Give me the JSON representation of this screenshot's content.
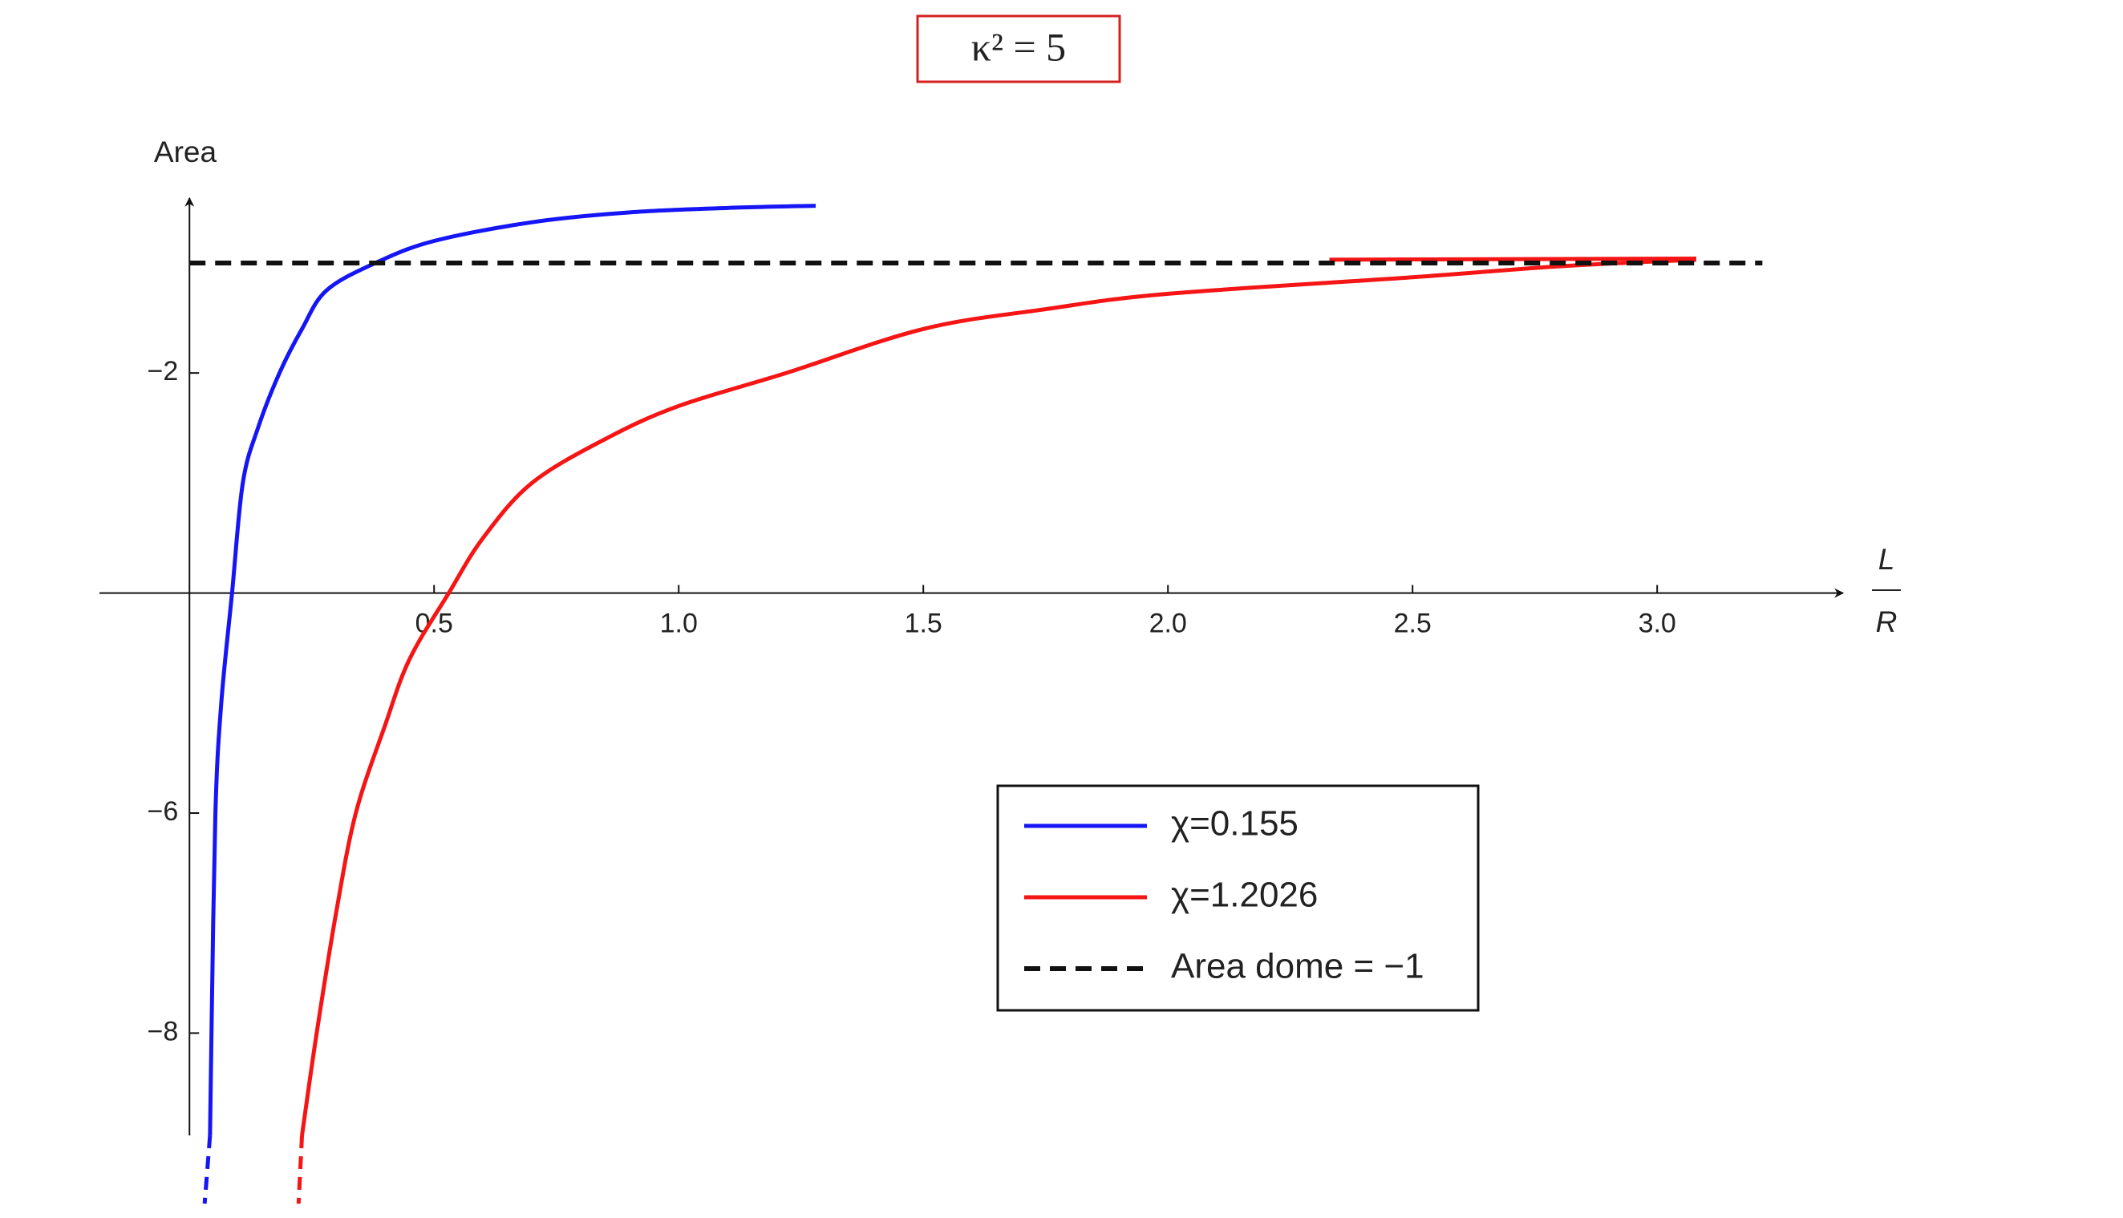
{
  "chart_data": {
    "type": "line",
    "title": "κ² = 5",
    "ylabel": "Area",
    "xlabel_numerator": "L",
    "xlabel_denominator": "R",
    "xlim": [
      -0.184,
      3.38
    ],
    "ylim": [
      -8.93,
      -0.41
    ],
    "x_axis_at": -4,
    "xticks": [
      0.5,
      {
        "value": 1,
        "label": "1.0"
      },
      1.5,
      {
        "value": 2,
        "label": "2.0"
      },
      2.5,
      {
        "value": 3,
        "label": "3.0"
      }
    ],
    "yticks": [
      {
        "value": -2,
        "label": "−2"
      },
      {
        "value": -6,
        "label": "−6"
      },
      {
        "value": -8,
        "label": "−8"
      }
    ],
    "series": [
      {
        "name": "χ=0.155",
        "color": "#1515f5",
        "dash": false,
        "x": [
          0.042,
          0.045,
          0.053,
          0.065,
          0.087,
          0.109,
          0.14,
          0.184,
          0.23,
          0.28,
          0.38,
          0.5,
          0.7,
          0.9,
          1.1,
          1.28
        ],
        "values": [
          -8.93,
          -8.0,
          -6.0,
          -5.0,
          -4.0,
          -3.0,
          -2.5,
          -2.0,
          -1.6,
          -1.25,
          -1.0,
          -0.8,
          -0.63,
          -0.54,
          -0.5,
          -0.48
        ],
        "tail_x": [
          0.042,
          0.031
        ],
        "tail_values": [
          -8.93,
          -9.55
        ]
      },
      {
        "name": "χ=1.2026",
        "color": "#f51515",
        "dash": false,
        "x": [
          0.23,
          0.26,
          0.3,
          0.34,
          0.4,
          0.45,
          0.53,
          0.6,
          0.7,
          0.85,
          1.0,
          1.22,
          1.5,
          1.75,
          2.0,
          2.5,
          2.8,
          3.08,
          null,
          2.33,
          3.08
        ],
        "values": [
          -8.93,
          -8.0,
          -6.9,
          -6.0,
          -5.2,
          -4.6,
          -4.0,
          -3.5,
          -3.0,
          -2.6,
          -2.3,
          -2.0,
          -1.6,
          -1.42,
          -1.28,
          -1.13,
          -1.03,
          -0.97,
          null,
          -0.97,
          -0.96
        ],
        "tail_x": [
          0.23,
          0.223
        ],
        "tail_values": [
          -8.93,
          -9.55
        ]
      },
      {
        "name": "Area dome = −1",
        "color": "#111111",
        "dash": true,
        "x": [
          0,
          3.215
        ],
        "values": [
          -1,
          -1
        ]
      }
    ]
  }
}
